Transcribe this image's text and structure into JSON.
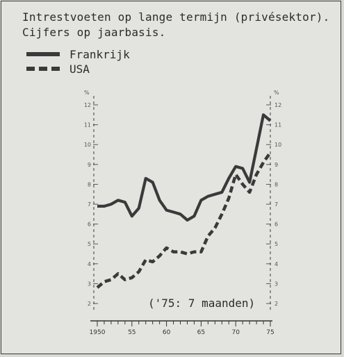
{
  "chart_data": {
    "type": "line",
    "title_line1": "Intrestvoeten op lange termijn (privésektor).",
    "title_line2": "Cijfers op jaarbasis.",
    "unit_left": "%",
    "unit_right": "%",
    "note": "('75: 7 maanden)",
    "x_tick_labels": [
      "1950",
      "55",
      "60",
      "65",
      "70",
      "75"
    ],
    "x_ticks": [
      1950,
      1955,
      1960,
      1965,
      1970,
      1975
    ],
    "y_ticks": [
      2,
      3,
      4,
      5,
      6,
      7,
      8,
      9,
      10,
      11,
      12
    ],
    "xlim": [
      1950,
      1975
    ],
    "ylim": [
      2,
      12
    ],
    "series": [
      {
        "name": "Frankrijk",
        "style": "solid",
        "x": [
          1950,
          1951,
          1952,
          1953,
          1954,
          1955,
          1956,
          1957,
          1958,
          1959,
          1960,
          1961,
          1962,
          1963,
          1964,
          1965,
          1966,
          1967,
          1968,
          1969,
          1970,
          1971,
          1972,
          1973,
          1974,
          1975
        ],
        "values": [
          6.9,
          6.9,
          7.0,
          7.2,
          7.1,
          6.4,
          6.8,
          8.3,
          8.1,
          7.2,
          6.7,
          6.6,
          6.5,
          6.2,
          6.4,
          7.2,
          7.4,
          7.5,
          7.6,
          8.3,
          8.9,
          8.8,
          8.1,
          9.8,
          11.5,
          11.2
        ]
      },
      {
        "name": "USA",
        "style": "dashed",
        "x": [
          1950,
          1951,
          1952,
          1953,
          1954,
          1955,
          1956,
          1957,
          1958,
          1959,
          1960,
          1961,
          1962,
          1963,
          1964,
          1965,
          1966,
          1967,
          1968,
          1969,
          1970,
          1971,
          1972,
          1973,
          1974,
          1975
        ],
        "values": [
          2.8,
          3.1,
          3.2,
          3.5,
          3.2,
          3.3,
          3.6,
          4.2,
          4.1,
          4.4,
          4.8,
          4.6,
          4.6,
          4.5,
          4.6,
          4.6,
          5.4,
          5.8,
          6.5,
          7.3,
          8.5,
          8.0,
          7.6,
          8.5,
          9.1,
          9.6
        ]
      }
    ],
    "colors": {
      "line": "#3a3a3a",
      "axis": "#555555"
    }
  }
}
